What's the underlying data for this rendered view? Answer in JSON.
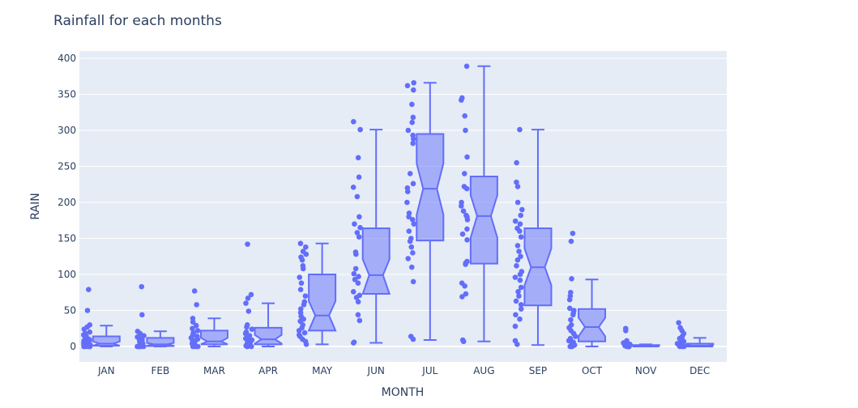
{
  "chart_data": {
    "type": "box",
    "title": "Rainfall for each months",
    "xlabel": "MONTH",
    "ylabel": "RAIN",
    "ylim": [
      -22,
      410
    ],
    "yticks": [
      0,
      50,
      100,
      150,
      200,
      250,
      300,
      350,
      400
    ],
    "grid": true,
    "legend": "none",
    "colors": {
      "line": "#636efa",
      "fill": "rgba(99,110,250,0.5)",
      "plot_bg": "#e5ecf6",
      "grid": "#ffffff",
      "text": "#2a3f5f"
    },
    "notched": true,
    "boxpoints": "all",
    "categories": [
      "JAN",
      "FEB",
      "MAR",
      "APR",
      "MAY",
      "JUN",
      "JUL",
      "AUG",
      "SEP",
      "OCT",
      "NOV",
      "DEC"
    ],
    "boxes": [
      {
        "month": "JAN",
        "lower": 0,
        "q1": 1,
        "median": 4,
        "q3": 14,
        "upper": 29,
        "notch_lo": 1,
        "notch_hi": 7,
        "points": [
          79,
          50,
          30,
          27,
          24,
          20,
          18,
          16,
          14,
          12,
          10,
          9,
          8,
          7,
          6,
          5,
          4,
          3,
          3,
          2,
          2,
          1,
          1,
          1,
          0,
          0,
          0,
          0,
          0,
          0
        ]
      },
      {
        "month": "FEB",
        "lower": 0,
        "q1": 0.5,
        "median": 3,
        "q3": 12,
        "upper": 21,
        "notch_lo": 1,
        "notch_hi": 5,
        "points": [
          83,
          44,
          21,
          18,
          15,
          13,
          11,
          9,
          8,
          7,
          6,
          5,
          4,
          3,
          2,
          2,
          1,
          1,
          0,
          0,
          0,
          0,
          0,
          0
        ]
      },
      {
        "month": "MAR",
        "lower": 0,
        "q1": 3,
        "median": 7,
        "q3": 22,
        "upper": 39,
        "notch_lo": 3,
        "notch_hi": 12,
        "points": [
          77,
          58,
          39,
          34,
          29,
          25,
          22,
          19,
          16,
          14,
          12,
          10,
          8,
          7,
          5,
          4,
          3,
          2,
          1,
          0,
          0,
          0,
          0
        ]
      },
      {
        "month": "APR",
        "lower": 0,
        "q1": 3,
        "median": 10,
        "q3": 26,
        "upper": 60,
        "notch_lo": 4,
        "notch_hi": 16,
        "points": [
          142,
          72,
          67,
          60,
          49,
          30,
          27,
          24,
          20,
          18,
          15,
          13,
          11,
          9,
          7,
          5,
          4,
          3,
          2,
          1,
          0,
          0,
          0
        ]
      },
      {
        "month": "MAY",
        "lower": 3,
        "q1": 22,
        "median": 43,
        "q3": 100,
        "upper": 143,
        "notch_lo": 22,
        "notch_hi": 63,
        "points": [
          143,
          138,
          132,
          128,
          124,
          120,
          112,
          108,
          96,
          88,
          79,
          70,
          62,
          58,
          52,
          47,
          42,
          38,
          35,
          30,
          26,
          22,
          19,
          16,
          14,
          10,
          7,
          3
        ]
      },
      {
        "month": "JUN",
        "lower": 5,
        "q1": 73,
        "median": 99,
        "q3": 164,
        "upper": 301,
        "notch_lo": 73,
        "notch_hi": 121,
        "points": [
          312,
          301,
          262,
          235,
          221,
          208,
          180,
          170,
          165,
          158,
          152,
          131,
          128,
          108,
          101,
          97,
          93,
          88,
          76,
          71,
          68,
          62,
          44,
          36,
          6,
          5
        ]
      },
      {
        "month": "JUL",
        "lower": 9,
        "q1": 147,
        "median": 219,
        "q3": 295,
        "upper": 366,
        "notch_lo": 183,
        "notch_hi": 254,
        "points": [
          366,
          362,
          356,
          336,
          318,
          311,
          300,
          293,
          288,
          282,
          240,
          226,
          220,
          215,
          200,
          185,
          180,
          176,
          170,
          160,
          150,
          146,
          138,
          130,
          122,
          110,
          90,
          14,
          10
        ]
      },
      {
        "month": "AUG",
        "lower": 7,
        "q1": 115,
        "median": 181,
        "q3": 236,
        "upper": 389,
        "notch_lo": 151,
        "notch_hi": 210,
        "points": [
          389,
          345,
          342,
          320,
          300,
          263,
          240,
          222,
          219,
          200,
          195,
          188,
          182,
          180,
          176,
          163,
          156,
          148,
          118,
          116,
          114,
          88,
          84,
          73,
          69,
          9,
          7
        ]
      },
      {
        "month": "SEP",
        "lower": 2,
        "q1": 57,
        "median": 110,
        "q3": 164,
        "upper": 301,
        "notch_lo": 85,
        "notch_hi": 136,
        "points": [
          301,
          255,
          228,
          222,
          200,
          190,
          182,
          174,
          170,
          164,
          160,
          152,
          140,
          132,
          125,
          120,
          112,
          104,
          100,
          96,
          92,
          82,
          76,
          70,
          63,
          58,
          52,
          44,
          38,
          28,
          8,
          3
        ]
      },
      {
        "month": "OCT",
        "lower": 0,
        "q1": 7,
        "median": 27,
        "q3": 52,
        "upper": 93,
        "notch_lo": 14,
        "notch_hi": 40,
        "points": [
          157,
          146,
          94,
          75,
          70,
          65,
          53,
          50,
          47,
          44,
          37,
          30,
          26,
          22,
          18,
          14,
          11,
          8,
          6,
          4,
          2,
          1,
          0,
          0,
          0
        ]
      },
      {
        "month": "NOV",
        "lower": 0,
        "q1": 0,
        "median": 0,
        "q3": 2,
        "upper": 3,
        "notch_lo": 0,
        "notch_hi": 1,
        "points": [
          25,
          22,
          8,
          5,
          3,
          2,
          1,
          1,
          0,
          0,
          0,
          0,
          0
        ]
      },
      {
        "month": "DEC",
        "lower": 0,
        "q1": 0,
        "median": 1,
        "q3": 4,
        "upper": 12,
        "notch_lo": 0,
        "notch_hi": 2,
        "points": [
          33,
          26,
          22,
          18,
          14,
          11,
          9,
          7,
          5,
          4,
          3,
          2,
          1,
          0,
          0,
          0
        ]
      }
    ]
  }
}
